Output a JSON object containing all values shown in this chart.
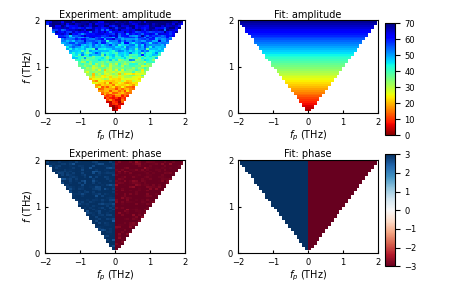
{
  "title_topleft": "Experiment: amplitude",
  "title_topright": "Fit: amplitude",
  "title_bottomleft": "Experiment: phase",
  "title_bottomright": "Fit: phase",
  "xlabel": "$f_p$ (THz)",
  "ylabel": "$f$ (THz)",
  "fp_range": [
    -2,
    2
  ],
  "f_range": [
    0,
    2
  ],
  "amp_vmin": 0,
  "amp_vmax": 70,
  "phase_vmin": -3,
  "phase_vmax": 3,
  "n_points": 50,
  "colorbar_amp_ticks": [
    0,
    10,
    20,
    30,
    40,
    50,
    60,
    70
  ],
  "colorbar_phase_ticks": [
    -3,
    -2,
    -1,
    0,
    1,
    2,
    3
  ],
  "tick_fp": [
    -2,
    -1,
    0,
    1,
    2
  ],
  "tick_f": [
    0,
    1,
    2
  ],
  "noise_amp": 4.0,
  "noise_phase": 0.15
}
